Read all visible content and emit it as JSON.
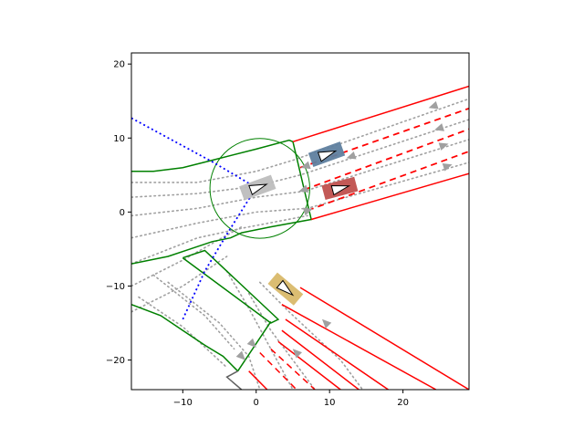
{
  "chart_data": {
    "type": "diagram",
    "xlim": [
      -17,
      29
    ],
    "ylim": [
      -24,
      21.5
    ],
    "x_ticks": [
      -10,
      0,
      10,
      20
    ],
    "y_ticks": [
      -20,
      -10,
      0,
      10,
      20
    ],
    "x_tick_labels": [
      "−10",
      "0",
      "10",
      "20"
    ],
    "y_tick_labels": [
      "−20",
      "−10",
      "0",
      "10",
      "20"
    ],
    "grid": false,
    "colors": {
      "road_edge": "#ff0000",
      "lane_divider": "#ff0000",
      "crosswalk": "#008000",
      "centerline": "#a0a0a0",
      "path": "#0000ff",
      "ego_vehicle": "#bdbdbd",
      "vehicle_blue": "#5f7f9f",
      "vehicle_red": "#c0504d",
      "vehicle_gold": "#d9b96a",
      "circle": "#008000",
      "gray_boundary": "#606060"
    },
    "circle": {
      "center": [
        0.5,
        3.2
      ],
      "radius": 6.8
    },
    "vehicles": [
      {
        "name": "ego",
        "center": [
          0.2,
          3.3
        ],
        "heading_deg": 20,
        "length": 4.6,
        "width": 2.0,
        "color": "#bdbdbd"
      },
      {
        "name": "blue",
        "center": [
          9.6,
          7.8
        ],
        "heading_deg": 20,
        "length": 4.6,
        "width": 2.0,
        "color": "#5f7f9f"
      },
      {
        "name": "red",
        "center": [
          11.4,
          3.2
        ],
        "heading_deg": 15,
        "length": 4.6,
        "width": 2.0,
        "color": "#c0504d"
      },
      {
        "name": "gold",
        "center": [
          4.0,
          -10.4
        ],
        "heading_deg": -40,
        "length": 4.6,
        "width": 2.0,
        "color": "#d9b96a"
      }
    ],
    "road_edges": [
      [
        [
          5.0,
          9.5
        ],
        [
          29,
          17.0
        ]
      ],
      [
        [
          7.5,
          -1.0
        ],
        [
          29,
          5.2
        ]
      ],
      [
        [
          3.5,
          -12.5
        ],
        [
          24.5,
          -24
        ]
      ],
      [
        [
          6.0,
          -10.2
        ],
        [
          29,
          -24
        ]
      ]
    ],
    "lane_dividers": [
      [
        [
          6.0,
          6.0
        ],
        [
          29,
          14.0
        ]
      ],
      [
        [
          6.5,
          3.0
        ],
        [
          29,
          11.2
        ]
      ],
      [
        [
          7.0,
          0.2
        ],
        [
          29,
          8.2
        ]
      ]
    ],
    "lower_road_lines": [
      {
        "points": [
          [
            -1.0,
            -21.5
          ],
          [
            1.5,
            -24
          ]
        ],
        "style": "solid"
      },
      {
        "points": [
          [
            0.5,
            -19.0
          ],
          [
            5.5,
            -24
          ]
        ],
        "style": "dashed"
      },
      {
        "points": [
          [
            2.0,
            -18.5
          ],
          [
            8.0,
            -24
          ]
        ],
        "style": "dashed"
      },
      {
        "points": [
          [
            3.0,
            -17.5
          ],
          [
            11.5,
            -24
          ]
        ],
        "style": "solid"
      },
      {
        "points": [
          [
            3.5,
            -16.0
          ],
          [
            14.0,
            -24
          ]
        ],
        "style": "solid"
      },
      {
        "points": [
          [
            4.0,
            -14.5
          ],
          [
            18.0,
            -24
          ]
        ],
        "style": "solid"
      }
    ],
    "crosswalks": [
      [
        [
          -17,
          5.5
        ],
        [
          -14,
          5.5
        ],
        [
          -10,
          6.0
        ],
        [
          -6,
          7.0
        ],
        [
          0,
          8.5
        ],
        [
          4.5,
          9.7
        ],
        [
          5.0,
          9.5
        ],
        [
          7.5,
          -1.0
        ],
        [
          2.0,
          -2.0
        ],
        [
          -2.0,
          -2.8
        ],
        [
          -3.5,
          -3.5
        ],
        [
          -6.0,
          -4.0
        ],
        [
          -9,
          -5.0
        ],
        [
          -12,
          -6.0
        ],
        [
          -17,
          -7.0
        ]
      ],
      [
        [
          -10,
          -6.2
        ],
        [
          -7,
          -5.2
        ],
        [
          3.0,
          -14.5
        ],
        [
          2.0,
          -15.0
        ],
        [
          -10,
          -6.2
        ]
      ],
      [
        [
          -17,
          -12.5
        ],
        [
          -13,
          -14.0
        ],
        [
          -10,
          -16.0
        ],
        [
          -7,
          -18.0
        ],
        [
          -4.5,
          -19.5
        ],
        [
          -3.0,
          -21.0
        ],
        [
          -2.5,
          -21.5
        ]
      ],
      [
        [
          2.0,
          -14.8
        ],
        [
          -2.5,
          -21.5
        ]
      ]
    ],
    "gray_boundary": [
      [
        -2.5,
        -21.5
      ],
      [
        -4.0,
        -22.3
      ],
      [
        -2.0,
        -24.0
      ]
    ],
    "planned_path": [
      [
        -17,
        12.7
      ],
      [
        -6,
        6.8
      ],
      [
        0.0,
        3.3
      ],
      [
        -4,
        -3.0
      ],
      [
        -7,
        -8.0
      ],
      [
        -10,
        -14.5
      ]
    ],
    "centerlines": [
      [
        [
          -17,
          4.0
        ],
        [
          -8,
          4.0
        ],
        [
          0,
          5.5
        ],
        [
          5.0,
          7.0
        ],
        [
          29,
          15.3
        ]
      ],
      [
        [
          -17,
          2.0
        ],
        [
          -8,
          2.5
        ],
        [
          0,
          3.5
        ],
        [
          6.0,
          5.0
        ],
        [
          29,
          12.5
        ]
      ],
      [
        [
          -17,
          -0.5
        ],
        [
          -8,
          0.5
        ],
        [
          0,
          2.0
        ],
        [
          6.5,
          2.8
        ],
        [
          29,
          9.8
        ]
      ],
      [
        [
          -17,
          -3.5
        ],
        [
          -8,
          -1.5
        ],
        [
          0,
          0.0
        ],
        [
          7.0,
          0.5
        ],
        [
          29,
          6.7
        ]
      ],
      [
        [
          -17,
          -7.0
        ],
        [
          -8,
          -3.5
        ],
        [
          -2,
          -2.2
        ],
        [
          7.0,
          -0.5
        ]
      ],
      [
        [
          -17,
          -10.0
        ],
        [
          -10,
          -6.5
        ],
        [
          -2.0,
          -2.0
        ]
      ],
      [
        [
          -17,
          -13.5
        ],
        [
          -10,
          -10.0
        ],
        [
          -4,
          -6.0
        ]
      ],
      [
        [
          -4,
          -8.0
        ],
        [
          -1,
          -13.0
        ],
        [
          2.0,
          -18.5
        ],
        [
          5.0,
          -24.0
        ]
      ],
      [
        [
          -1,
          -11.0
        ],
        [
          2.0,
          -16.0
        ],
        [
          8.0,
          -24.0
        ]
      ],
      [
        [
          0.5,
          -9.5
        ],
        [
          4.5,
          -13.5
        ],
        [
          11.5,
          -20.0
        ],
        [
          14.5,
          -24.0
        ]
      ],
      [
        [
          -12.0,
          -9.5
        ],
        [
          -5.0,
          -15.0
        ],
        [
          -1.0,
          -19.5
        ],
        [
          0.5,
          -24.0
        ]
      ],
      [
        [
          -14,
          -8.5
        ],
        [
          -7.0,
          -14.0
        ],
        [
          -3.0,
          -18.5
        ]
      ],
      [
        [
          -16,
          -11.5
        ],
        [
          -10,
          -15.5
        ],
        [
          -4,
          -21.0
        ]
      ]
    ],
    "arrows": [
      {
        "at": [
          24.2,
          14.3
        ],
        "heading_deg": 198
      },
      {
        "at": [
          25.0,
          11.3
        ],
        "heading_deg": 198
      },
      {
        "at": [
          25.5,
          9.0
        ],
        "heading_deg": 18
      },
      {
        "at": [
          26.0,
          6.2
        ],
        "heading_deg": 18
      },
      {
        "at": [
          13.0,
          7.5
        ],
        "heading_deg": 198
      },
      {
        "at": [
          6.8,
          6.2
        ],
        "heading_deg": 198
      },
      {
        "at": [
          6.5,
          3.0
        ],
        "heading_deg": 198
      },
      {
        "at": [
          7.0,
          0.2
        ],
        "heading_deg": 18
      },
      {
        "at": [
          9.5,
          -15.0
        ],
        "heading_deg": 135
      },
      {
        "at": [
          5.5,
          -19.0
        ],
        "heading_deg": 135
      },
      {
        "at": [
          -0.5,
          -17.8
        ],
        "heading_deg": -45
      },
      {
        "at": [
          -2.0,
          -19.5
        ],
        "heading_deg": -45
      }
    ]
  }
}
